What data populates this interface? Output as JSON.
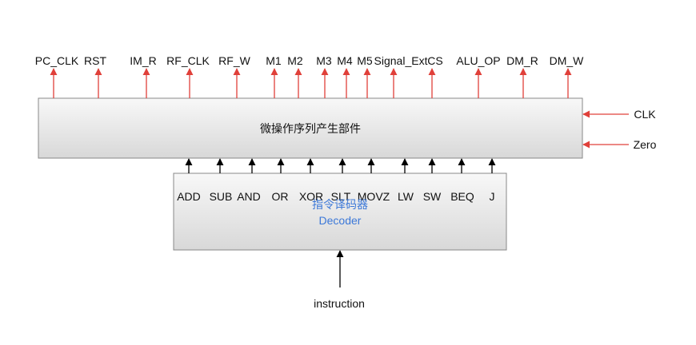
{
  "colors": {
    "output_arrow": "#e0403a",
    "input_arrow": "#000000",
    "box_border": "#888888",
    "box_fill_top": "#f8f8f8",
    "box_fill_bottom": "#d8d8d8",
    "decoder_text": "#3c78d8"
  },
  "micro_unit": {
    "label": "微操作序列产生部件",
    "outputs": [
      "PC_CLK",
      "RST",
      "IM_R",
      "RF_CLK",
      "RF_W",
      "M1",
      "M2",
      "M3",
      "M4",
      "M5",
      "Signal_Ext",
      "CS",
      "ALU_OP",
      "DM_R",
      "DM_W"
    ],
    "side_inputs": [
      "CLK",
      "Zero"
    ]
  },
  "decoder": {
    "label_cn": "指令译码器",
    "label_en": "Decoder",
    "signals": [
      "ADD",
      "SUB",
      "AND",
      "OR",
      "XOR",
      "SLT",
      "MOVZ",
      "LW",
      "SW",
      "BEQ",
      "J"
    ]
  },
  "input_label": "instruction"
}
